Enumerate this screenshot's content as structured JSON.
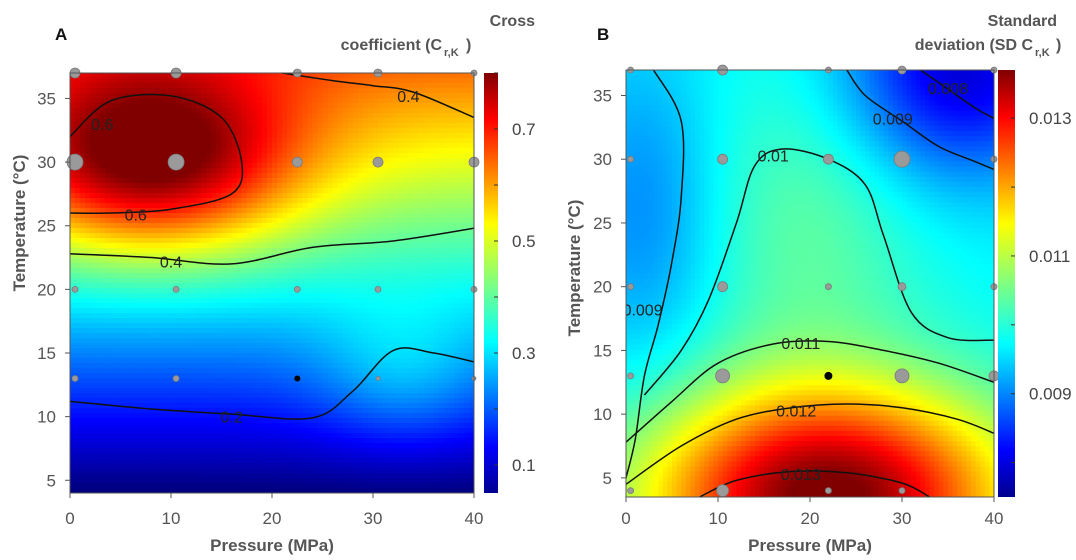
{
  "chart_data": [
    {
      "type": "heatmap",
      "panel_label": "A",
      "title_lines": [
        "Cross",
        "coefficient (C",
        "r,K",
        ")"
      ],
      "xlabel": "Pressure (MPa)",
      "ylabel": "Temperature (°C)",
      "xlim": [
        0,
        40
      ],
      "ylim": [
        4,
        37
      ],
      "xticks": [
        0,
        10,
        20,
        30,
        40
      ],
      "yticks": [
        5,
        10,
        15,
        20,
        25,
        30,
        35
      ],
      "colorbar": {
        "range": [
          0.05,
          0.8
        ],
        "ticks": [
          0.1,
          0.3,
          0.5,
          0.7
        ],
        "tick_labels": [
          "0.1",
          "0.3",
          "0.5",
          "0.7"
        ],
        "colormap": "jet"
      },
      "field_model": {
        "base": 0.36,
        "temp_slope": 0.0175,
        "temp_ref": 22,
        "hot": {
          "amp": 0.34,
          "x": 8,
          "y": 30,
          "sx": 10,
          "sy": 5
        },
        "bumps": [
          {
            "amp": 0.08,
            "x": 33,
            "y": 13,
            "sx": 6,
            "sy": 4
          }
        ]
      },
      "contours": [
        {
          "label": "0.6",
          "path": [
            [
              0,
              32
            ],
            [
              4,
              34.8
            ],
            [
              10,
              35.2
            ],
            [
              15,
              33.5
            ],
            [
              17,
              30
            ],
            [
              16,
              27.5
            ],
            [
              10,
              26.3
            ],
            [
              4,
              26
            ],
            [
              0,
              26
            ]
          ],
          "labels_at": [
            {
              "x": 3.2,
              "y": 33,
              "text": "0.6"
            },
            {
              "x": 6.5,
              "y": 25.9,
              "text": "0.6"
            }
          ]
        },
        {
          "label": "0.4",
          "path": [
            [
              21,
              37
            ],
            [
              26,
              36.4
            ],
            [
              30,
              36
            ],
            [
              34,
              35.5
            ],
            [
              40,
              33.5
            ]
          ],
          "labels_at": [
            {
              "x": 33.5,
              "y": 35.2,
              "text": "0.4"
            }
          ]
        },
        {
          "label": "0.4",
          "path": [
            [
              0,
              22.8
            ],
            [
              8,
              22.5
            ],
            [
              16,
              22
            ],
            [
              24,
              23.3
            ],
            [
              32,
              23.8
            ],
            [
              40,
              24.8
            ]
          ],
          "labels_at": [
            {
              "x": 10,
              "y": 22.2,
              "text": "0.4"
            }
          ]
        },
        {
          "label": "0.2",
          "path": [
            [
              0,
              11.2
            ],
            [
              8,
              10.6
            ],
            [
              16,
              10.2
            ],
            [
              24,
              9.9
            ],
            [
              28,
              12
            ],
            [
              32,
              15.2
            ],
            [
              36,
              15
            ],
            [
              40,
              14.3
            ]
          ],
          "labels_at": [
            {
              "x": 16,
              "y": 10,
              "text": "0.2"
            }
          ]
        }
      ],
      "points": [
        {
          "x": 0.5,
          "y": 37,
          "s": 5
        },
        {
          "x": 10.5,
          "y": 37,
          "s": 5
        },
        {
          "x": 22.5,
          "y": 37,
          "s": 4
        },
        {
          "x": 30.5,
          "y": 37,
          "s": 4
        },
        {
          "x": 40,
          "y": 37,
          "s": 3
        },
        {
          "x": 0.5,
          "y": 30,
          "s": 8
        },
        {
          "x": 10.5,
          "y": 30,
          "s": 8
        },
        {
          "x": 22.5,
          "y": 30,
          "s": 5
        },
        {
          "x": 30.5,
          "y": 30,
          "s": 5
        },
        {
          "x": 40,
          "y": 30,
          "s": 5
        },
        {
          "x": 0.5,
          "y": 20,
          "s": 3
        },
        {
          "x": 10.5,
          "y": 20,
          "s": 3
        },
        {
          "x": 22.5,
          "y": 20,
          "s": 3
        },
        {
          "x": 30.5,
          "y": 20,
          "s": 3
        },
        {
          "x": 40,
          "y": 20,
          "s": 3
        },
        {
          "x": 0.5,
          "y": 13,
          "s": 3
        },
        {
          "x": 10.5,
          "y": 13,
          "s": 3
        },
        {
          "x": 22.5,
          "y": 13,
          "s": 3,
          "dark": true
        },
        {
          "x": 30.5,
          "y": 13,
          "s": 2
        },
        {
          "x": 40,
          "y": 13,
          "s": 2
        }
      ]
    },
    {
      "type": "heatmap",
      "panel_label": "B",
      "title_lines": [
        "Standard",
        "deviation (SD C",
        "r,K",
        " )"
      ],
      "xlabel": "Pressure (MPa)",
      "ylabel": "Temperature (°C)",
      "xlim": [
        0,
        40
      ],
      "ylim": [
        3.5,
        37
      ],
      "xticks": [
        0,
        10,
        20,
        30,
        40
      ],
      "yticks": [
        5,
        10,
        15,
        20,
        25,
        30,
        35
      ],
      "colorbar": {
        "range": [
          0.0075,
          0.0137
        ],
        "ticks": [
          0.009,
          0.011,
          0.013
        ],
        "tick_labels": [
          "0.009",
          "0.011",
          "0.013"
        ],
        "colormap": "jet"
      },
      "field_model": {
        "base": 0.0098,
        "ridge_amp": 0.0006,
        "ridge_x": 20,
        "ridge_y": 25,
        "ridge_sx": 9,
        "ridge_sy": 10,
        "low_center": {
          "amp": -0.0007,
          "x": 2,
          "y": 26,
          "sx": 6,
          "sy": 9
        },
        "low_topright": {
          "amp": -0.0018,
          "x": 36,
          "y": 37,
          "sx": 9,
          "sy": 6
        },
        "high_bottom": {
          "amp": 0.004,
          "x": 22,
          "y": 3.5,
          "sx": 14,
          "sy": 6
        }
      },
      "contours": [
        {
          "label": "0.008",
          "path": [
            [
              32,
              37
            ],
            [
              35,
              35.5
            ],
            [
              38,
              34
            ],
            [
              40,
              33.2
            ]
          ],
          "labels_at": [
            {
              "x": 35,
              "y": 35.6,
              "text": "0.008"
            }
          ]
        },
        {
          "label": "0.009",
          "path": [
            [
              24,
              37
            ],
            [
              26,
              35
            ],
            [
              30,
              33
            ],
            [
              34,
              31
            ],
            [
              38,
              29.8
            ],
            [
              40,
              29.2
            ]
          ],
          "labels_at": [
            {
              "x": 29,
              "y": 33.2,
              "text": "0.009"
            }
          ]
        },
        {
          "label": "0.009",
          "path": [
            [
              3,
              37
            ],
            [
              6,
              33
            ],
            [
              6,
              27
            ],
            [
              5,
              22
            ],
            [
              3.5,
              17
            ],
            [
              2,
              13
            ],
            [
              1,
              8
            ],
            [
              0,
              5
            ]
          ],
          "labels_at": [
            {
              "x": 1.8,
              "y": 18.2,
              "text": "0.009"
            }
          ]
        },
        {
          "label": "0.01",
          "path": [
            [
              2,
              11.5
            ],
            [
              6,
              15
            ],
            [
              9,
              19
            ],
            [
              12,
              25
            ],
            [
              14,
              29.5
            ],
            [
              17,
              30.8
            ],
            [
              22,
              30
            ],
            [
              26,
              28
            ],
            [
              28,
              24
            ],
            [
              31,
              18
            ],
            [
              35,
              16
            ],
            [
              40,
              15.8
            ]
          ],
          "labels_at": [
            {
              "x": 16,
              "y": 30.3,
              "text": "0.01"
            }
          ]
        },
        {
          "label": "0.011",
          "path": [
            [
              0,
              7.8
            ],
            [
              5,
              11
            ],
            [
              10,
              14
            ],
            [
              16,
              15.5
            ],
            [
              22,
              15.7
            ],
            [
              28,
              15
            ],
            [
              34,
              14
            ],
            [
              40,
              12.5
            ]
          ],
          "labels_at": [
            {
              "x": 19,
              "y": 15.6,
              "text": "0.011"
            }
          ]
        },
        {
          "label": "0.012",
          "path": [
            [
              0,
              4.5
            ],
            [
              6,
              7.5
            ],
            [
              12,
              9.6
            ],
            [
              18,
              10.5
            ],
            [
              24,
              10.8
            ],
            [
              30,
              10.5
            ],
            [
              36,
              9.6
            ],
            [
              40,
              8.5
            ]
          ],
          "labels_at": [
            {
              "x": 18.5,
              "y": 10.3,
              "text": "0.012"
            }
          ]
        },
        {
          "label": "0.013",
          "path": [
            [
              8,
              3.5
            ],
            [
              12,
              4.8
            ],
            [
              18,
              5.5
            ],
            [
              24,
              5.4
            ],
            [
              30,
              4.6
            ],
            [
              33,
              3.5
            ]
          ],
          "labels_at": [
            {
              "x": 19,
              "y": 5.3,
              "text": "0.013"
            }
          ]
        }
      ],
      "points": [
        {
          "x": 0.5,
          "y": 37,
          "s": 3
        },
        {
          "x": 10.5,
          "y": 37,
          "s": 5
        },
        {
          "x": 22,
          "y": 37,
          "s": 3
        },
        {
          "x": 30,
          "y": 37,
          "s": 4
        },
        {
          "x": 40,
          "y": 37,
          "s": 3
        },
        {
          "x": 0.5,
          "y": 30,
          "s": 3
        },
        {
          "x": 10.5,
          "y": 30,
          "s": 5
        },
        {
          "x": 22,
          "y": 30,
          "s": 5
        },
        {
          "x": 30,
          "y": 30,
          "s": 8
        },
        {
          "x": 40,
          "y": 30,
          "s": 3
        },
        {
          "x": 0.5,
          "y": 20,
          "s": 3
        },
        {
          "x": 10.5,
          "y": 20,
          "s": 5
        },
        {
          "x": 22,
          "y": 20,
          "s": 3
        },
        {
          "x": 30,
          "y": 20,
          "s": 4
        },
        {
          "x": 40,
          "y": 20,
          "s": 3
        },
        {
          "x": 0.5,
          "y": 13,
          "s": 3
        },
        {
          "x": 10.5,
          "y": 13,
          "s": 7
        },
        {
          "x": 22,
          "y": 13,
          "s": 4,
          "dark": true
        },
        {
          "x": 30,
          "y": 13,
          "s": 7
        },
        {
          "x": 40,
          "y": 13,
          "s": 5
        },
        {
          "x": 0.5,
          "y": 4,
          "s": 3
        },
        {
          "x": 10.5,
          "y": 4,
          "s": 6
        },
        {
          "x": 22,
          "y": 4,
          "s": 3
        },
        {
          "x": 30,
          "y": 4,
          "s": 3
        }
      ]
    }
  ]
}
